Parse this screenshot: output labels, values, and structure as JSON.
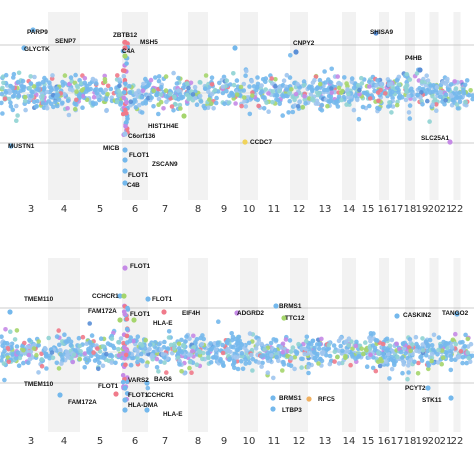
{
  "chart_data": [
    {
      "type": "scatter",
      "title": "",
      "xlabel": "",
      "ylabel": "",
      "categories": [
        "3",
        "4",
        "5",
        "6",
        "7",
        "8",
        "9",
        "10",
        "11",
        "12",
        "13",
        "14",
        "15",
        "16",
        "17",
        "18",
        "19",
        "20",
        "21",
        "22"
      ],
      "grid": true,
      "reference_lines": [
        "upper threshold",
        "lower threshold"
      ],
      "point_colors": [
        "#74b8ec",
        "#9ec5ee",
        "#8fd3d3",
        "#a5d56c",
        "#c58ae6",
        "#f07a8a",
        "#5a8fd6"
      ],
      "annotations": [
        {
          "label": "PARP9",
          "chrom": "3",
          "value": 3.1
        },
        {
          "label": "SENP7",
          "chrom": "3",
          "value": 2.9
        },
        {
          "label": "GLYCTK",
          "chrom": "3",
          "value": 2.6
        },
        {
          "label": "ZBTB12",
          "chrom": "6",
          "value": 3.1
        },
        {
          "label": "MSH5",
          "chrom": "6",
          "value": 2.8
        },
        {
          "label": "C4A",
          "chrom": "6",
          "value": 2.6
        },
        {
          "label": "SHISA9",
          "chrom": "16",
          "value": 3.3
        },
        {
          "label": "CNPY2",
          "chrom": "12",
          "value": 2.8
        },
        {
          "label": "P4HB",
          "chrom": "17",
          "value": 2.4
        },
        {
          "label": "HIST1H4E",
          "chrom": "6",
          "value": -1.8
        },
        {
          "label": "C6orf136",
          "chrom": "6",
          "value": -2.2
        },
        {
          "label": "SLC25A1",
          "chrom": "22",
          "value": -0.8
        },
        {
          "label": "MUSTN1",
          "chrom": "3",
          "value": -2.7
        },
        {
          "label": "MICB",
          "chrom": "6",
          "value": -2.6
        },
        {
          "label": "CCDC7",
          "chrom": "10",
          "value": -2.3
        },
        {
          "label": "FLOT1",
          "chrom": "6",
          "value": -3.1
        },
        {
          "label": "ZSCAN9",
          "chrom": "6",
          "value": -3.6
        },
        {
          "label": "FLOT1",
          "chrom": "6",
          "value": -4.1
        },
        {
          "label": "C4B",
          "chrom": "6",
          "value": -4.5
        }
      ]
    },
    {
      "type": "scatter",
      "title": "",
      "xlabel": "",
      "ylabel": "",
      "categories": [
        "3",
        "4",
        "5",
        "6",
        "7",
        "8",
        "9",
        "10",
        "11",
        "12",
        "13",
        "14",
        "15",
        "16",
        "17",
        "18",
        "19",
        "20",
        "21",
        "22"
      ],
      "grid": true,
      "reference_lines": [
        "upper threshold",
        "lower threshold"
      ],
      "point_colors": [
        "#74b8ec",
        "#9ec5ee",
        "#8fd3d3",
        "#a5d56c",
        "#c58ae6",
        "#f07a8a",
        "#5a8fd6"
      ],
      "annotations": [
        {
          "label": "FLOT1",
          "chrom": "6",
          "value": 3.6
        },
        {
          "label": "CCHCR1",
          "chrom": "6",
          "value": 2.9
        },
        {
          "label": "FLOT1",
          "chrom": "6",
          "value": 2.6
        },
        {
          "label": "FAM172A",
          "chrom": "5",
          "value": 2.3
        },
        {
          "label": "FLOT1",
          "chrom": "6",
          "value": 1.9
        },
        {
          "label": "HLA-E",
          "chrom": "6",
          "value": 1.1
        },
        {
          "label": "TMEM110",
          "chrom": "3",
          "value": 2.5
        },
        {
          "label": "EIF4H",
          "chrom": "7",
          "value": 2.0
        },
        {
          "label": "ADGRD2",
          "chrom": "9",
          "value": 2.0
        },
        {
          "label": "BRMS1",
          "chrom": "11",
          "value": 2.5
        },
        {
          "label": "TTC12",
          "chrom": "11",
          "value": 1.6
        },
        {
          "label": "CASKIN2",
          "chrom": "17",
          "value": 1.6
        },
        {
          "label": "TANGO2",
          "chrom": "22",
          "value": 2.0
        },
        {
          "label": "TMEM110",
          "chrom": "3",
          "value": -1.7
        },
        {
          "label": "FLOT1",
          "chrom": "6",
          "value": -1.9
        },
        {
          "label": "VARS2",
          "chrom": "6",
          "value": -1.8
        },
        {
          "label": "BAG6",
          "chrom": "6",
          "value": -2.0
        },
        {
          "label": "FAM172A",
          "chrom": "5",
          "value": -3.0
        },
        {
          "label": "FLOT1",
          "chrom": "6",
          "value": -2.5
        },
        {
          "label": "CCHCR1",
          "chrom": "6",
          "value": -2.9
        },
        {
          "label": "HLA-DMA",
          "chrom": "6",
          "value": -3.1
        },
        {
          "label": "HLA-E",
          "chrom": "6",
          "value": -3.6
        },
        {
          "label": "BRMS1",
          "chrom": "11",
          "value": -2.5
        },
        {
          "label": "RFC5",
          "chrom": "12",
          "value": -2.6
        },
        {
          "label": "LTBP3",
          "chrom": "11",
          "value": -3.2
        },
        {
          "label": "PCYT2",
          "chrom": "17",
          "value": -2.0
        },
        {
          "label": "STK11",
          "chrom": "19",
          "value": -2.6
        }
      ]
    }
  ]
}
